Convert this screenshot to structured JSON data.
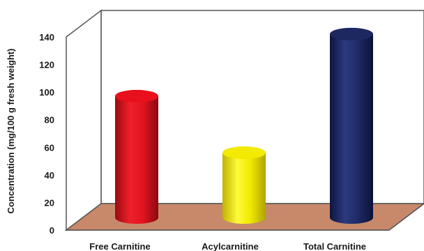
{
  "chart_data": {
    "type": "bar",
    "categories": [
      "Free Carnitine",
      "Acylcarnitine",
      "Total Carnitine"
    ],
    "values": [
      88,
      47,
      133
    ],
    "ylabel": "Concentration (mg/100 g fresh weight)",
    "ylim": [
      0,
      140
    ],
    "yticks": [
      0,
      20,
      40,
      60,
      80,
      100,
      120,
      140
    ],
    "bar_colors": [
      "#e8101c",
      "#f2ea00",
      "#1d2760"
    ],
    "floor_color": "#c8896a",
    "style": "3d-cylinder"
  }
}
